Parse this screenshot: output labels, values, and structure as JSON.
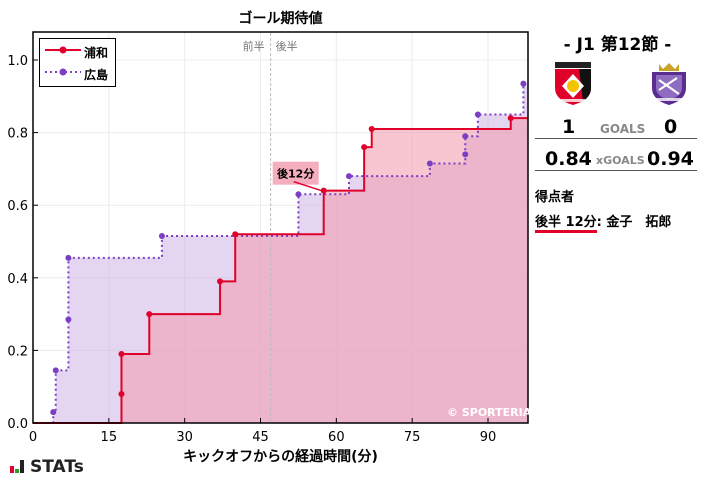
{
  "chart_data": {
    "type": "line",
    "subtype": "step",
    "title": "ゴール期待値",
    "xlabel": "キックオフからの経過時間(分)",
    "ylabel": "",
    "xlim": [
      0,
      98
    ],
    "ylim": [
      0,
      1.08
    ],
    "xticks": [
      0,
      15,
      30,
      45,
      60,
      75,
      90
    ],
    "yticks": [
      0.0,
      0.2,
      0.4,
      0.6,
      0.8,
      1.0
    ],
    "xtick_labels": [
      "0",
      "15",
      "30",
      "45",
      "60",
      "75",
      "90"
    ],
    "ytick_labels": [
      "0.0",
      "0.2",
      "0.4",
      "0.6",
      "0.8",
      "1.0"
    ],
    "grid": true,
    "legend_position": "upper left",
    "halftime_line": 47,
    "annotations": [
      {
        "text": "前半",
        "x": 47,
        "position": "left"
      },
      {
        "text": "後半",
        "x": 47,
        "position": "right"
      },
      {
        "text": "後12分",
        "x": 57.5,
        "y": 0.64,
        "type": "goal"
      }
    ],
    "series": [
      {
        "name": "浦和",
        "color": "#e0002a",
        "fill": "#f2a0b2",
        "linestyle": "solid",
        "points": [
          [
            0,
            0
          ],
          [
            17.5,
            0.08
          ],
          [
            17.5,
            0.19
          ],
          [
            23,
            0.3
          ],
          [
            37,
            0.39
          ],
          [
            40,
            0.52
          ],
          [
            57.5,
            0.64
          ],
          [
            65.5,
            0.76
          ],
          [
            67,
            0.81
          ],
          [
            94.5,
            0.84
          ]
        ],
        "end_x": 98,
        "final": 0.84
      },
      {
        "name": "広島",
        "color": "#7b3fc4",
        "fill": "#cdb3e6",
        "linestyle": "dotted",
        "points": [
          [
            0,
            0
          ],
          [
            4,
            0.03
          ],
          [
            4.5,
            0.145
          ],
          [
            7,
            0.285
          ],
          [
            7,
            0.455
          ],
          [
            25.5,
            0.515
          ],
          [
            52.5,
            0.63
          ],
          [
            62.5,
            0.68
          ],
          [
            78.5,
            0.715
          ],
          [
            85.5,
            0.74
          ],
          [
            85.5,
            0.79
          ],
          [
            88,
            0.85
          ],
          [
            97,
            0.935
          ]
        ],
        "end_x": 98,
        "final": 0.94
      }
    ]
  },
  "chart": {
    "title": "ゴール期待値",
    "xlabel": "キックオフからの経過時間(分)",
    "first_half": "前半",
    "second_half": "後半",
    "goal_annotation": "後12分",
    "copyright": "© SPORTERIA",
    "legend": [
      {
        "label": "浦和",
        "color": "#e0002a"
      },
      {
        "label": "広島",
        "color": "#7b3fc4"
      }
    ]
  },
  "match": {
    "round": "-  J1 第12節  -",
    "home_team": "浦和",
    "away_team": "広島",
    "home_crest_colors": [
      "#e0002a",
      "#111111",
      "#f5c400"
    ],
    "away_crest_colors": [
      "#5b2d91",
      "#c9a227"
    ],
    "goals_label": "GOALS",
    "home_goals": "1",
    "away_goals": "0",
    "xgoals_label": "xGOALS",
    "home_xg": "0.84",
    "away_xg": "0.94"
  },
  "scorers": {
    "heading": "得点者",
    "items": [
      {
        "time": "後半 12分",
        "sep": ":",
        "name": "金子　拓郎"
      }
    ]
  },
  "brand": {
    "logo_text": "STATs",
    "bar_colors": [
      "#e0002a",
      "#2aa02a",
      "#222222"
    ]
  }
}
